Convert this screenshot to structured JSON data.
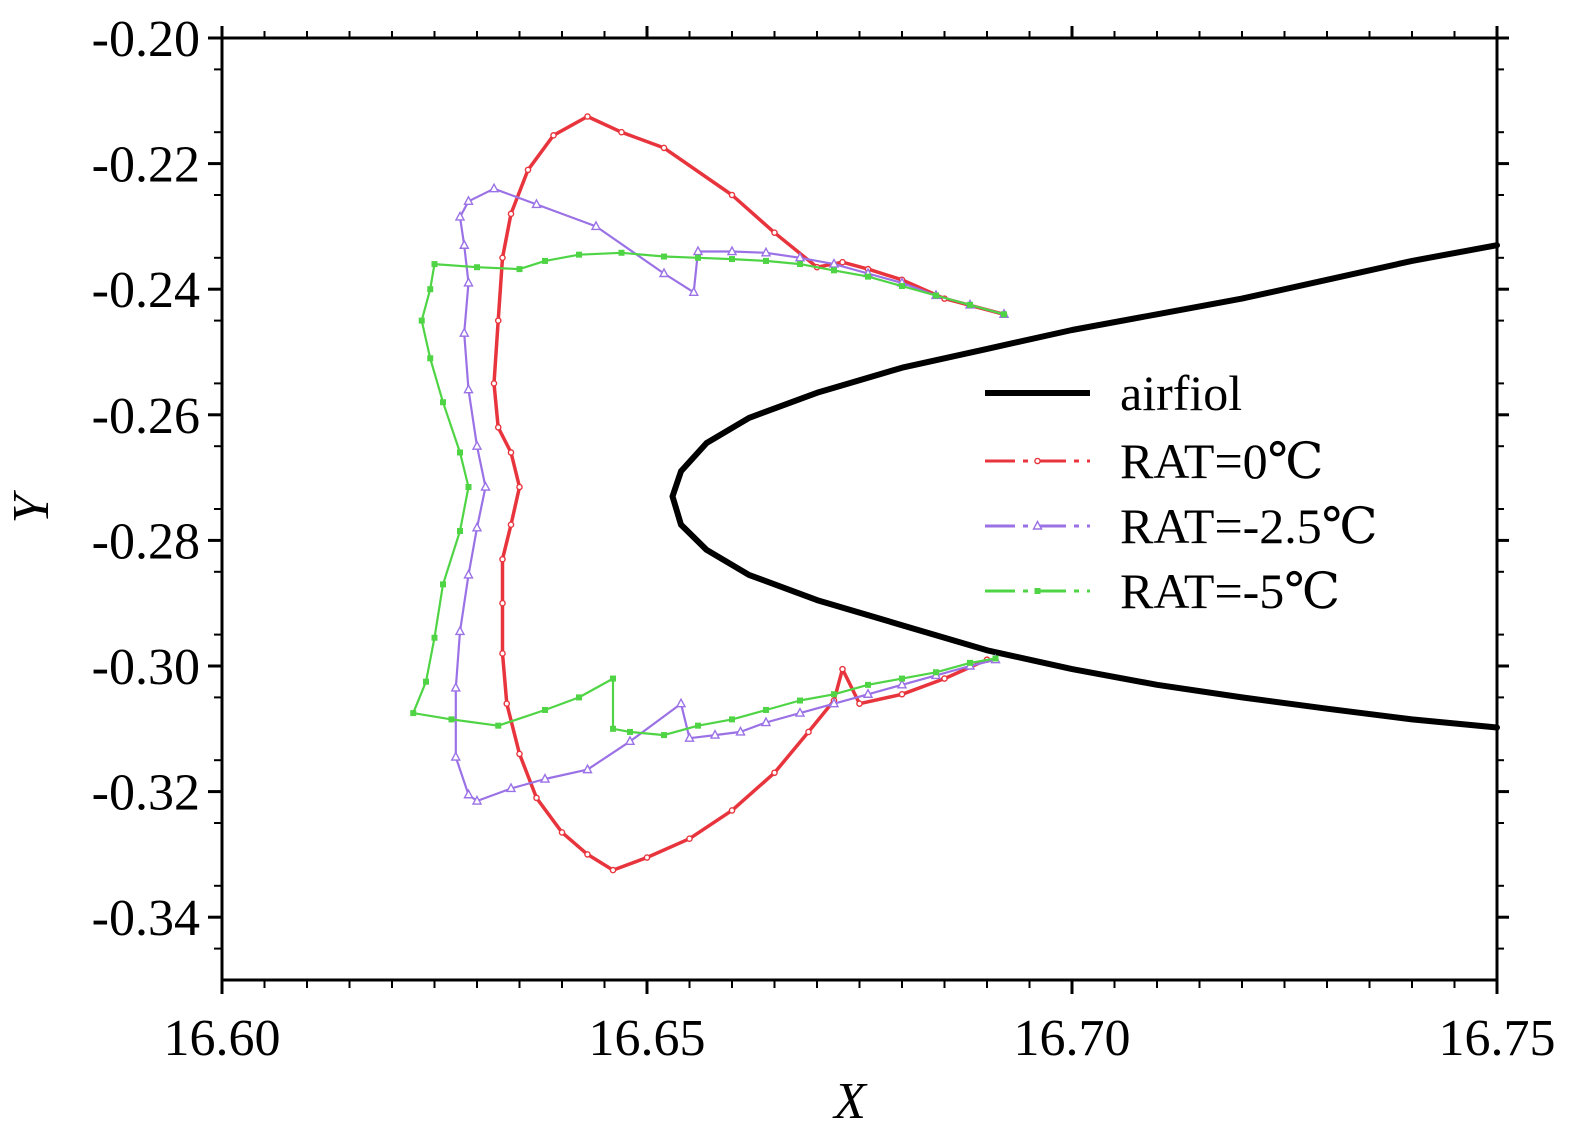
{
  "colors": {
    "airfoil": "#000000",
    "rat_0": "#e8343c",
    "rat_m25": "#9b72e6",
    "rat_m5": "#4fd445"
  },
  "chart_data": {
    "type": "line",
    "title": "",
    "xlabel": "X",
    "ylabel": "Y",
    "xlim": [
      16.6,
      16.75
    ],
    "ylim": [
      -0.35,
      -0.2
    ],
    "x_ticks": [
      "16.60",
      "16.65",
      "16.70",
      "16.75"
    ],
    "y_ticks": [
      "-0.20",
      "-0.22",
      "-0.24",
      "-0.26",
      "-0.28",
      "-0.30",
      "-0.32",
      "-0.34"
    ],
    "grid": false,
    "legend_position": "right",
    "series": [
      {
        "name": "airfiol",
        "style": "solid",
        "marker": "none",
        "points": [
          [
            16.75,
            -0.233
          ],
          [
            16.74,
            -0.2355
          ],
          [
            16.73,
            -0.2385
          ],
          [
            16.72,
            -0.2415
          ],
          [
            16.71,
            -0.244
          ],
          [
            16.7,
            -0.2465
          ],
          [
            16.69,
            -0.2495
          ],
          [
            16.68,
            -0.2525
          ],
          [
            16.67,
            -0.2565
          ],
          [
            16.662,
            -0.2605
          ],
          [
            16.657,
            -0.2645
          ],
          [
            16.654,
            -0.269
          ],
          [
            16.653,
            -0.273
          ],
          [
            16.654,
            -0.2775
          ],
          [
            16.657,
            -0.2815
          ],
          [
            16.662,
            -0.2855
          ],
          [
            16.67,
            -0.2895
          ],
          [
            16.68,
            -0.2935
          ],
          [
            16.69,
            -0.2975
          ],
          [
            16.7,
            -0.3005
          ],
          [
            16.71,
            -0.303
          ],
          [
            16.72,
            -0.305
          ],
          [
            16.73,
            -0.3068
          ],
          [
            16.74,
            -0.3085
          ],
          [
            16.75,
            -0.3098
          ]
        ]
      },
      {
        "name": "RAT=0℃",
        "style": "dashdot",
        "marker": "circle",
        "points": [
          [
            16.692,
            -0.244
          ],
          [
            16.685,
            -0.2415
          ],
          [
            16.68,
            -0.2385
          ],
          [
            16.676,
            -0.2368
          ],
          [
            16.673,
            -0.2357
          ],
          [
            16.67,
            -0.2365
          ],
          [
            16.665,
            -0.231
          ],
          [
            16.66,
            -0.225
          ],
          [
            16.652,
            -0.2175
          ],
          [
            16.647,
            -0.215
          ],
          [
            16.643,
            -0.2125
          ],
          [
            16.639,
            -0.2155
          ],
          [
            16.636,
            -0.221
          ],
          [
            16.634,
            -0.228
          ],
          [
            16.633,
            -0.235
          ],
          [
            16.6325,
            -0.245
          ],
          [
            16.632,
            -0.255
          ],
          [
            16.6325,
            -0.262
          ],
          [
            16.634,
            -0.266
          ],
          [
            16.635,
            -0.2715
          ],
          [
            16.634,
            -0.2775
          ],
          [
            16.633,
            -0.283
          ],
          [
            16.633,
            -0.29
          ],
          [
            16.633,
            -0.298
          ],
          [
            16.6335,
            -0.306
          ],
          [
            16.635,
            -0.314
          ],
          [
            16.637,
            -0.321
          ],
          [
            16.64,
            -0.3265
          ],
          [
            16.643,
            -0.33
          ],
          [
            16.646,
            -0.3325
          ],
          [
            16.65,
            -0.3305
          ],
          [
            16.655,
            -0.3275
          ],
          [
            16.66,
            -0.323
          ],
          [
            16.665,
            -0.317
          ],
          [
            16.669,
            -0.3105
          ],
          [
            16.672,
            -0.3055
          ],
          [
            16.673,
            -0.3005
          ],
          [
            16.675,
            -0.306
          ],
          [
            16.68,
            -0.3045
          ],
          [
            16.685,
            -0.302
          ],
          [
            16.69,
            -0.299
          ]
        ]
      },
      {
        "name": "RAT=-2.5℃",
        "style": "dashdot",
        "marker": "triangle",
        "points": [
          [
            16.692,
            -0.244
          ],
          [
            16.688,
            -0.2425
          ],
          [
            16.684,
            -0.241
          ],
          [
            16.68,
            -0.239
          ],
          [
            16.676,
            -0.2375
          ],
          [
            16.672,
            -0.236
          ],
          [
            16.668,
            -0.235
          ],
          [
            16.664,
            -0.2342
          ],
          [
            16.66,
            -0.234
          ],
          [
            16.656,
            -0.234
          ],
          [
            16.6555,
            -0.2405
          ],
          [
            16.652,
            -0.2375
          ],
          [
            16.644,
            -0.23
          ],
          [
            16.637,
            -0.2265
          ],
          [
            16.632,
            -0.224
          ],
          [
            16.629,
            -0.226
          ],
          [
            16.628,
            -0.2285
          ],
          [
            16.6285,
            -0.233
          ],
          [
            16.629,
            -0.239
          ],
          [
            16.6285,
            -0.247
          ],
          [
            16.629,
            -0.256
          ],
          [
            16.63,
            -0.265
          ],
          [
            16.631,
            -0.2715
          ],
          [
            16.63,
            -0.278
          ],
          [
            16.629,
            -0.2855
          ],
          [
            16.628,
            -0.2945
          ],
          [
            16.6275,
            -0.3035
          ],
          [
            16.6275,
            -0.3145
          ],
          [
            16.629,
            -0.3205
          ],
          [
            16.63,
            -0.3215
          ],
          [
            16.634,
            -0.3195
          ],
          [
            16.638,
            -0.318
          ],
          [
            16.643,
            -0.3165
          ],
          [
            16.648,
            -0.312
          ],
          [
            16.654,
            -0.306
          ],
          [
            16.655,
            -0.3115
          ],
          [
            16.658,
            -0.311
          ],
          [
            16.661,
            -0.3105
          ],
          [
            16.664,
            -0.309
          ],
          [
            16.668,
            -0.3075
          ],
          [
            16.672,
            -0.306
          ],
          [
            16.676,
            -0.3045
          ],
          [
            16.68,
            -0.303
          ],
          [
            16.684,
            -0.3015
          ],
          [
            16.688,
            -0.3
          ],
          [
            16.691,
            -0.299
          ]
        ]
      },
      {
        "name": "RAT=-5℃",
        "style": "dashdot",
        "marker": "square",
        "points": [
          [
            16.692,
            -0.244
          ],
          [
            16.688,
            -0.2425
          ],
          [
            16.684,
            -0.241
          ],
          [
            16.68,
            -0.2395
          ],
          [
            16.676,
            -0.238
          ],
          [
            16.672,
            -0.237
          ],
          [
            16.668,
            -0.236
          ],
          [
            16.664,
            -0.2355
          ],
          [
            16.66,
            -0.2352
          ],
          [
            16.656,
            -0.235
          ],
          [
            16.652,
            -0.2348
          ],
          [
            16.647,
            -0.2342
          ],
          [
            16.642,
            -0.2345
          ],
          [
            16.638,
            -0.2355
          ],
          [
            16.635,
            -0.2368
          ],
          [
            16.63,
            -0.2365
          ],
          [
            16.625,
            -0.236
          ],
          [
            16.6245,
            -0.24
          ],
          [
            16.6235,
            -0.245
          ],
          [
            16.6245,
            -0.251
          ],
          [
            16.626,
            -0.258
          ],
          [
            16.628,
            -0.266
          ],
          [
            16.629,
            -0.2715
          ],
          [
            16.628,
            -0.2785
          ],
          [
            16.626,
            -0.287
          ],
          [
            16.625,
            -0.2955
          ],
          [
            16.624,
            -0.3025
          ],
          [
            16.6225,
            -0.3075
          ],
          [
            16.627,
            -0.3085
          ],
          [
            16.6325,
            -0.3095
          ],
          [
            16.638,
            -0.307
          ],
          [
            16.642,
            -0.305
          ],
          [
            16.646,
            -0.302
          ],
          [
            16.646,
            -0.31
          ],
          [
            16.648,
            -0.3105
          ],
          [
            16.652,
            -0.311
          ],
          [
            16.656,
            -0.3095
          ],
          [
            16.66,
            -0.3085
          ],
          [
            16.664,
            -0.307
          ],
          [
            16.668,
            -0.3055
          ],
          [
            16.672,
            -0.3045
          ],
          [
            16.676,
            -0.303
          ],
          [
            16.68,
            -0.302
          ],
          [
            16.684,
            -0.301
          ],
          [
            16.688,
            -0.2995
          ],
          [
            16.691,
            -0.2988
          ]
        ]
      }
    ]
  }
}
